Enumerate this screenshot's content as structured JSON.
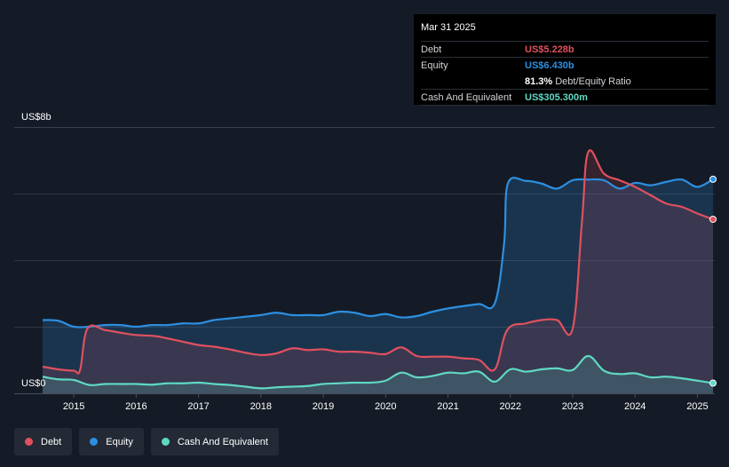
{
  "tooltip": {
    "date": "Mar 31 2025",
    "debt_label": "Debt",
    "debt_value": "US$5.228b",
    "equity_label": "Equity",
    "equity_value": "US$6.430b",
    "ratio_value": "81.3%",
    "ratio_label": "Debt/Equity Ratio",
    "cash_label": "Cash And Equivalent",
    "cash_value": "US$305.300m"
  },
  "legend": [
    {
      "label": "Debt",
      "color": "#e0505e"
    },
    {
      "label": "Equity",
      "color": "#2d8fe0"
    },
    {
      "label": "Cash And Equivalent",
      "color": "#5fd8c4"
    }
  ],
  "colors": {
    "debt": "#e0505e",
    "equity": "#2d8fe0",
    "cash": "#5fd8c4",
    "background": "#151b26",
    "grid": "#2f3540"
  },
  "chart_data": {
    "type": "area",
    "y_top_label": "US$8b",
    "y_bottom_label": "US$0",
    "ylim": [
      0,
      8
    ],
    "xlim": [
      2014.5,
      2025.25
    ],
    "x_ticks": [
      "2015",
      "2016",
      "2017",
      "2018",
      "2019",
      "2020",
      "2021",
      "2022",
      "2023",
      "2024",
      "2025"
    ],
    "grid": true,
    "legend_position": "bottom-left",
    "series": [
      {
        "name": "Debt",
        "points": [
          [
            2014.5,
            0.8
          ],
          [
            2014.75,
            0.72
          ],
          [
            2015.0,
            0.68
          ],
          [
            2015.1,
            0.7
          ],
          [
            2015.22,
            1.95
          ],
          [
            2015.5,
            1.9
          ],
          [
            2015.75,
            1.82
          ],
          [
            2016.0,
            1.75
          ],
          [
            2016.3,
            1.72
          ],
          [
            2016.5,
            1.65
          ],
          [
            2016.75,
            1.55
          ],
          [
            2017.0,
            1.45
          ],
          [
            2017.25,
            1.4
          ],
          [
            2017.5,
            1.32
          ],
          [
            2017.75,
            1.22
          ],
          [
            2018.0,
            1.15
          ],
          [
            2018.25,
            1.2
          ],
          [
            2018.5,
            1.35
          ],
          [
            2018.75,
            1.3
          ],
          [
            2019.0,
            1.32
          ],
          [
            2019.25,
            1.25
          ],
          [
            2019.5,
            1.25
          ],
          [
            2019.75,
            1.22
          ],
          [
            2020.0,
            1.18
          ],
          [
            2020.25,
            1.38
          ],
          [
            2020.5,
            1.12
          ],
          [
            2020.75,
            1.1
          ],
          [
            2021.0,
            1.1
          ],
          [
            2021.25,
            1.05
          ],
          [
            2021.5,
            1.0
          ],
          [
            2021.75,
            0.72
          ],
          [
            2021.95,
            1.9
          ],
          [
            2022.25,
            2.1
          ],
          [
            2022.5,
            2.2
          ],
          [
            2022.75,
            2.2
          ],
          [
            2023.0,
            1.95
          ],
          [
            2023.15,
            5.2
          ],
          [
            2023.25,
            7.25
          ],
          [
            2023.5,
            6.6
          ],
          [
            2023.75,
            6.4
          ],
          [
            2024.0,
            6.2
          ],
          [
            2024.25,
            5.95
          ],
          [
            2024.5,
            5.7
          ],
          [
            2024.75,
            5.6
          ],
          [
            2025.0,
            5.4
          ],
          [
            2025.25,
            5.228
          ]
        ]
      },
      {
        "name": "Equity",
        "points": [
          [
            2014.5,
            2.2
          ],
          [
            2014.75,
            2.18
          ],
          [
            2015.0,
            2.0
          ],
          [
            2015.25,
            2.0
          ],
          [
            2015.5,
            2.05
          ],
          [
            2015.75,
            2.05
          ],
          [
            2016.0,
            2.0
          ],
          [
            2016.25,
            2.05
          ],
          [
            2016.5,
            2.05
          ],
          [
            2016.75,
            2.1
          ],
          [
            2017.0,
            2.1
          ],
          [
            2017.25,
            2.2
          ],
          [
            2017.5,
            2.25
          ],
          [
            2017.75,
            2.3
          ],
          [
            2018.0,
            2.35
          ],
          [
            2018.25,
            2.42
          ],
          [
            2018.5,
            2.35
          ],
          [
            2018.75,
            2.35
          ],
          [
            2019.0,
            2.35
          ],
          [
            2019.25,
            2.45
          ],
          [
            2019.5,
            2.42
          ],
          [
            2019.75,
            2.32
          ],
          [
            2020.0,
            2.38
          ],
          [
            2020.25,
            2.28
          ],
          [
            2020.5,
            2.32
          ],
          [
            2020.75,
            2.45
          ],
          [
            2021.0,
            2.55
          ],
          [
            2021.25,
            2.62
          ],
          [
            2021.5,
            2.68
          ],
          [
            2021.75,
            2.7
          ],
          [
            2021.9,
            4.5
          ],
          [
            2021.96,
            6.3
          ],
          [
            2022.25,
            6.38
          ],
          [
            2022.5,
            6.3
          ],
          [
            2022.75,
            6.15
          ],
          [
            2023.0,
            6.4
          ],
          [
            2023.25,
            6.42
          ],
          [
            2023.5,
            6.4
          ],
          [
            2023.75,
            6.15
          ],
          [
            2024.0,
            6.32
          ],
          [
            2024.25,
            6.25
          ],
          [
            2024.5,
            6.35
          ],
          [
            2024.75,
            6.42
          ],
          [
            2025.0,
            6.2
          ],
          [
            2025.25,
            6.43
          ]
        ]
      },
      {
        "name": "Cash And Equivalent",
        "points": [
          [
            2014.5,
            0.5
          ],
          [
            2014.75,
            0.42
          ],
          [
            2015.0,
            0.4
          ],
          [
            2015.25,
            0.25
          ],
          [
            2015.5,
            0.28
          ],
          [
            2015.75,
            0.28
          ],
          [
            2016.0,
            0.28
          ],
          [
            2016.25,
            0.26
          ],
          [
            2016.5,
            0.3
          ],
          [
            2016.75,
            0.3
          ],
          [
            2017.0,
            0.32
          ],
          [
            2017.25,
            0.28
          ],
          [
            2017.5,
            0.25
          ],
          [
            2017.75,
            0.2
          ],
          [
            2018.0,
            0.15
          ],
          [
            2018.25,
            0.18
          ],
          [
            2018.5,
            0.2
          ],
          [
            2018.75,
            0.22
          ],
          [
            2019.0,
            0.28
          ],
          [
            2019.25,
            0.3
          ],
          [
            2019.5,
            0.32
          ],
          [
            2019.75,
            0.32
          ],
          [
            2020.0,
            0.38
          ],
          [
            2020.25,
            0.62
          ],
          [
            2020.5,
            0.48
          ],
          [
            2020.75,
            0.52
          ],
          [
            2021.0,
            0.62
          ],
          [
            2021.25,
            0.6
          ],
          [
            2021.5,
            0.65
          ],
          [
            2021.75,
            0.35
          ],
          [
            2022.0,
            0.72
          ],
          [
            2022.25,
            0.65
          ],
          [
            2022.5,
            0.72
          ],
          [
            2022.75,
            0.75
          ],
          [
            2023.0,
            0.7
          ],
          [
            2023.25,
            1.12
          ],
          [
            2023.5,
            0.68
          ],
          [
            2023.75,
            0.58
          ],
          [
            2024.0,
            0.6
          ],
          [
            2024.25,
            0.48
          ],
          [
            2024.5,
            0.5
          ],
          [
            2024.75,
            0.45
          ],
          [
            2025.0,
            0.38
          ],
          [
            2025.25,
            0.3053
          ]
        ]
      }
    ]
  }
}
